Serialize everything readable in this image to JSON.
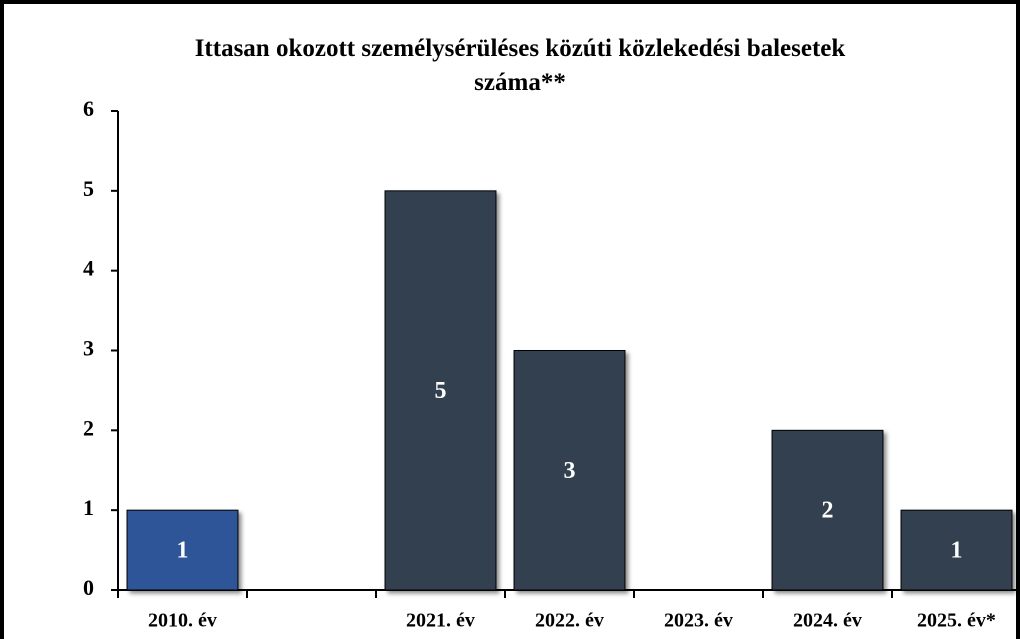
{
  "chart_data": {
    "type": "bar",
    "title": "Ittasan okozott személysérüléses közúti közlekedési balesetek száma**",
    "categories": [
      "2010. év",
      null,
      "2021. év",
      "2022. év",
      "2023. év",
      "2024. év",
      "2025. év*"
    ],
    "values": [
      1,
      null,
      5,
      3,
      0,
      2,
      1
    ],
    "colors": [
      "#2f5597",
      null,
      "#333f50",
      "#333f50",
      "#333f50",
      "#333f50",
      "#333f50"
    ],
    "ylim": [
      0,
      6
    ],
    "yticks": [
      0,
      1,
      2,
      3,
      4,
      5,
      6
    ],
    "grid": false
  }
}
